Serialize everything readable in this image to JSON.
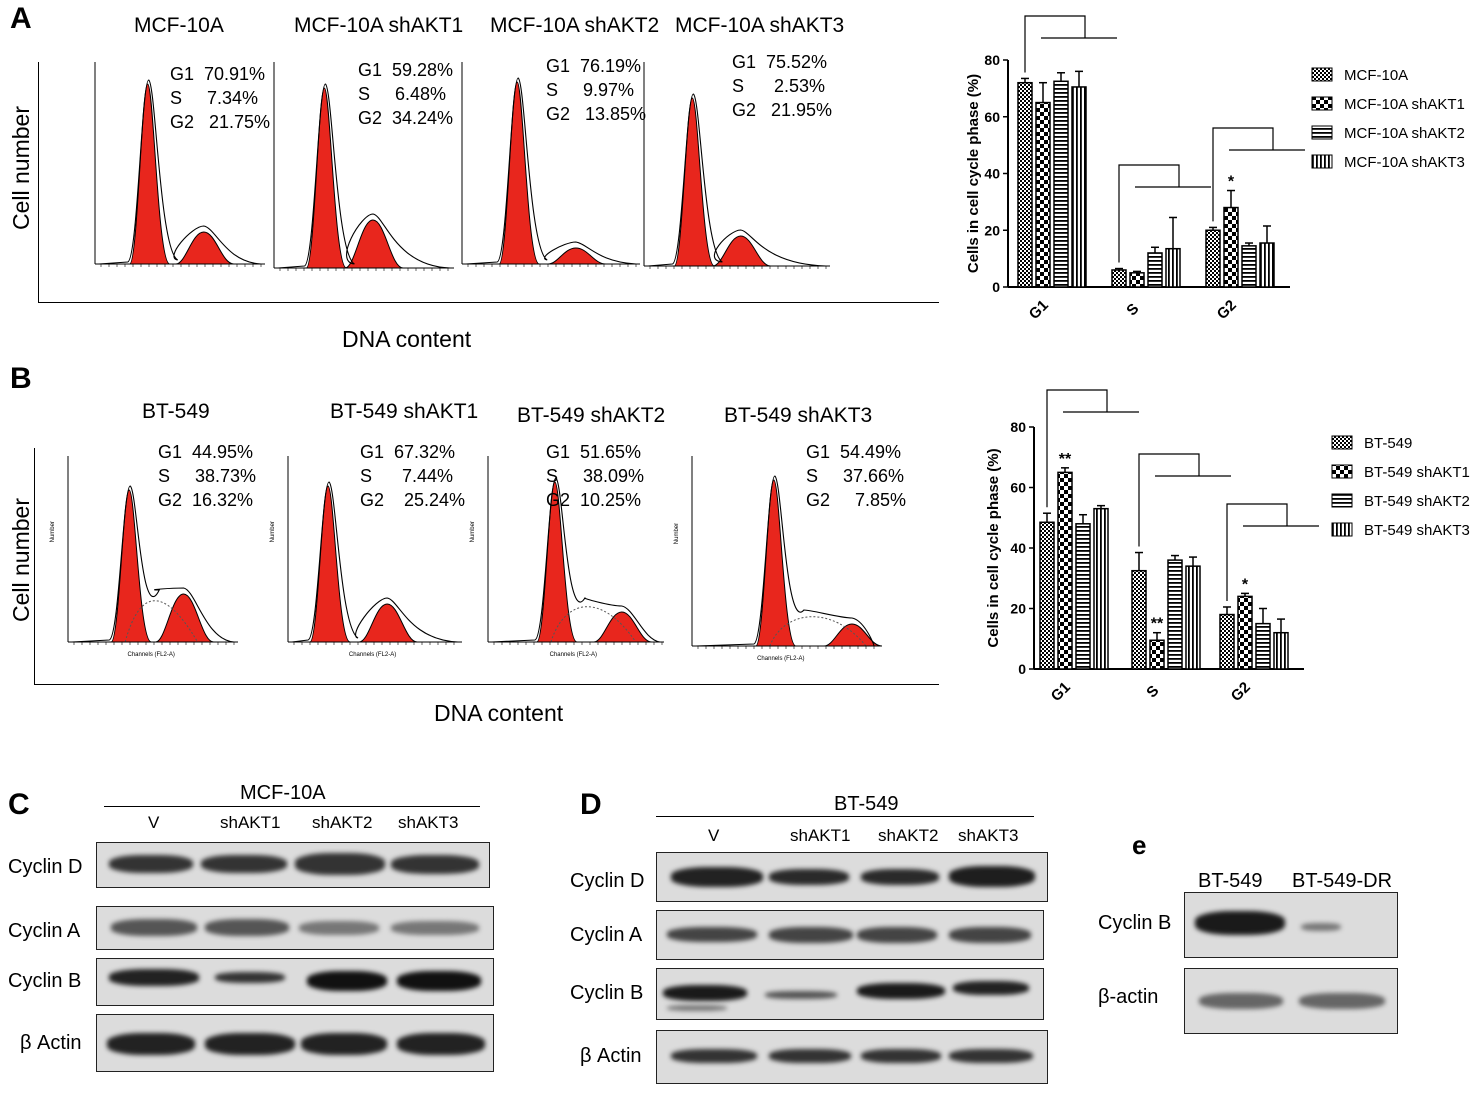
{
  "panel_A": {
    "letter": "A",
    "y_axis": "Cell number",
    "x_axis": "DNA content",
    "histograms": [
      {
        "title": "MCF-10A",
        "g1": "G1  70.91%",
        "s": "S     7.34%",
        "g2": "G2   21.75%"
      },
      {
        "title": "MCF-10A shAKT1",
        "g1": "G1  59.28%",
        "s": "S     6.48%",
        "g2": "G2  34.24%"
      },
      {
        "title": "MCF-10A shAKT2",
        "g1": "G1  76.19%",
        "s": "S     9.97%",
        "g2": "G2   13.85%"
      },
      {
        "title": "MCF-10A shAKT3",
        "g1": "G1  75.52%",
        "s": "S      2.53%",
        "g2": "G2   21.95%"
      }
    ]
  },
  "panel_B": {
    "letter": "B",
    "y_axis": "Cell number",
    "x_axis": "DNA content",
    "histograms": [
      {
        "title": "BT-549",
        "g1": "G1  44.95%",
        "s": "S     38.73%",
        "g2": "G2  16.32%"
      },
      {
        "title": "BT-549 shAKT1",
        "g1": "G1  67.32%",
        "s": "S      7.44%",
        "g2": "G2    25.24%"
      },
      {
        "title": "BT-549 shAKT2",
        "g1": "G1  51.65%",
        "s": "S     38.09%",
        "g2": "G2  10.25%"
      },
      {
        "title": "BT-549 shAKT3",
        "g1": "G1  54.49%",
        "s": "S     37.66%",
        "g2": "G2     7.85%"
      }
    ]
  },
  "chart_data": [
    {
      "type": "bar",
      "ylabel": "Cells in cell cycle phase (%)",
      "ylim": [
        0,
        80
      ],
      "yticks": [
        "0",
        "20",
        "40",
        "60",
        "80"
      ],
      "categories": [
        "G1",
        "S",
        "G2"
      ],
      "legend": "right",
      "series": [
        {
          "name": "MCF-10A",
          "values": [
            72,
            6,
            20
          ],
          "errors": [
            1.5,
            0.5,
            1
          ]
        },
        {
          "name": "MCF-10A shAKT1",
          "values": [
            65,
            5,
            28
          ],
          "errors": [
            7,
            0.5,
            6
          ]
        },
        {
          "name": "MCF-10A shAKT2",
          "values": [
            72.5,
            12,
            14.5
          ],
          "errors": [
            3,
            2,
            1
          ]
        },
        {
          "name": "MCF-10A shAKT3",
          "values": [
            70.5,
            13.5,
            15.5
          ],
          "errors": [
            5.5,
            11,
            6
          ]
        }
      ],
      "annotations": [
        {
          "category": "G2",
          "series": 1,
          "text": "*"
        }
      ]
    },
    {
      "type": "bar",
      "ylabel": "Cells in cell cycle phase (%)",
      "ylim": [
        0,
        80
      ],
      "yticks": [
        "0",
        "20",
        "40",
        "60",
        "80"
      ],
      "categories": [
        "G1",
        "S",
        "G2"
      ],
      "legend": "right",
      "series": [
        {
          "name": "BT-549",
          "values": [
            48.5,
            32.5,
            18
          ],
          "errors": [
            3,
            6,
            2.5
          ]
        },
        {
          "name": "BT-549 shAKT1",
          "values": [
            65,
            9.5,
            24
          ],
          "errors": [
            1.5,
            2.5,
            1
          ]
        },
        {
          "name": "BT-549 shAKT2",
          "values": [
            48,
            36,
            15
          ],
          "errors": [
            3,
            1.5,
            5
          ]
        },
        {
          "name": "BT-549 shAKT3",
          "values": [
            53,
            34,
            12
          ],
          "errors": [
            1,
            3,
            4.5
          ]
        }
      ],
      "annotations": [
        {
          "category": "G1",
          "series": 1,
          "text": "**"
        },
        {
          "category": "S",
          "series": 1,
          "text": "**"
        },
        {
          "category": "G2",
          "series": 1,
          "text": "*"
        }
      ]
    }
  ],
  "panel_C": {
    "letter": "C",
    "group": "MCF-10A",
    "lanes": [
      "V",
      "shAKT1",
      "shAKT2",
      "shAKT3"
    ],
    "rows": [
      "Cyclin D",
      "Cyclin A",
      "Cyclin B",
      "β Actin"
    ]
  },
  "panel_D": {
    "letter": "D",
    "group": "BT-549",
    "lanes": [
      "V",
      "shAKT1",
      "shAKT2",
      "shAKT3"
    ],
    "rows": [
      "Cyclin D",
      "Cyclin A",
      "Cyclin B",
      "β Actin"
    ]
  },
  "panel_E": {
    "letter": "e",
    "lanes": [
      "BT-549",
      "BT-549-DR"
    ],
    "rows": [
      "Cyclin B",
      "β-actin"
    ]
  },
  "histogram_axis": {
    "y_tick": "Number",
    "x_label": "Channels (FL2-A)"
  },
  "colors": {
    "peak": "#e8261d",
    "blot_bg": "#dcdcdc",
    "band": "#333333"
  }
}
